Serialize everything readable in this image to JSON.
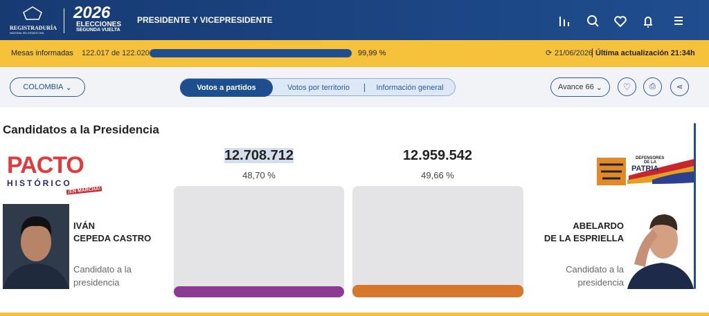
{
  "header": {
    "logo_top": "REGISTRADURÍA",
    "logo_sub": "NACIONAL DEL ESTADO CIVIL",
    "year": "2026",
    "elections": "ELECCIONES",
    "round": "SEGUNDA VUELTA",
    "title": "PRESIDENTE Y VICEPRESIDENTE"
  },
  "status": {
    "label": "Mesas informadas",
    "count": "122.017 de 122.020",
    "progress": 99.99,
    "progress_label": "99,99 %",
    "date": "21/06/2026",
    "update": "Última actualización 21:34h"
  },
  "toolbar": {
    "region": "COLOMBIA",
    "tabs": [
      "Votos a partidos",
      "Votos por territorio",
      "Información general"
    ],
    "active_tab": 0,
    "avance": "Avance 66"
  },
  "section": {
    "title": "Candidatos a la Presidencia"
  },
  "candidates": [
    {
      "party": [
        "PACTO",
        "HISTÓRICO",
        "¡EN MARCHA!"
      ],
      "name": [
        "IVÁN",
        "CEPEDA CASTRO"
      ],
      "role": "Candidato a la presidencia",
      "votes": "12.708.712",
      "percent": "48,70 %",
      "color": "#8c3b93"
    },
    {
      "party": [
        "DEFENSORES",
        "DE LA",
        "PATRIA"
      ],
      "name": [
        "ABELARDO",
        "DE LA ESPRIELLA"
      ],
      "role": "Candidato a la presidencia",
      "votes": "12.959.542",
      "percent": "49,66 %",
      "color": "#d7772d"
    }
  ]
}
